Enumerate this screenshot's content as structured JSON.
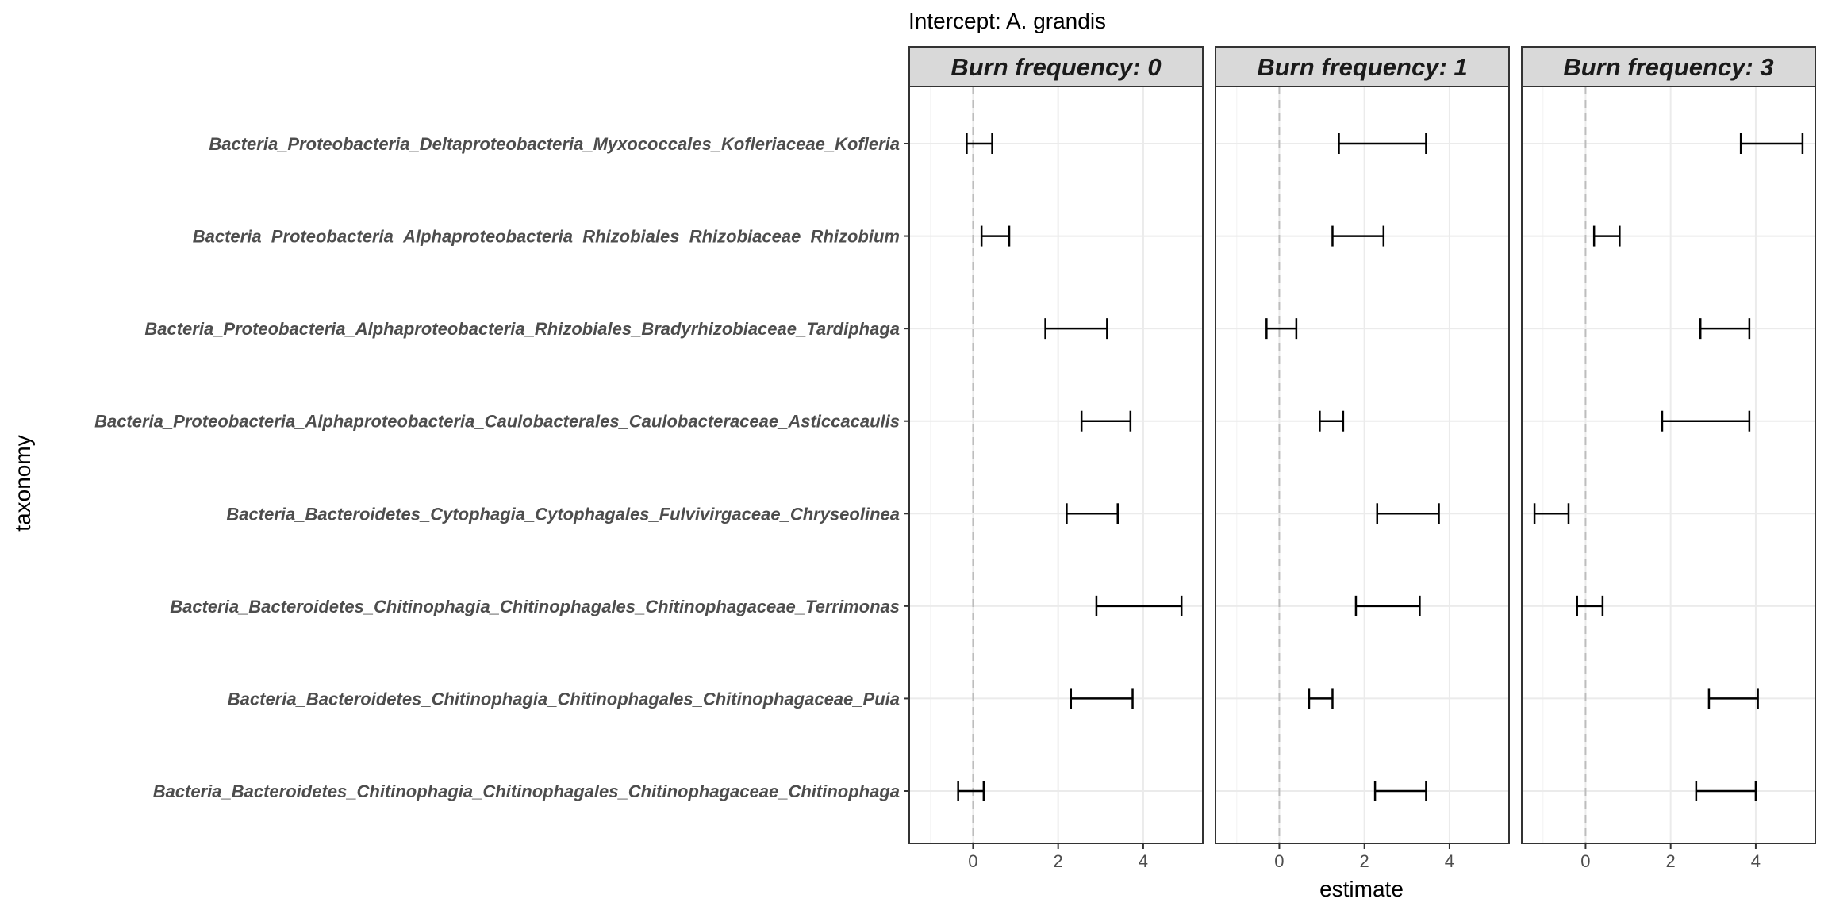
{
  "chart_data": {
    "type": "errorbar",
    "title": "Intercept: A. grandis",
    "xlabel": "estimate",
    "ylabel": "taxonomy",
    "xlim": [
      -1.5,
      5.4
    ],
    "xticks": [
      0,
      2,
      4
    ],
    "grid": true,
    "zero_reference_line": "dashed",
    "categories": [
      "Bacteria_Proteobacteria_Deltaproteobacteria_Myxococcales_Kofleriaceae_Kofleria",
      "Bacteria_Proteobacteria_Alphaproteobacteria_Rhizobiales_Rhizobiaceae_Rhizobium",
      "Bacteria_Proteobacteria_Alphaproteobacteria_Rhizobiales_Bradyrhizobiaceae_Tardiphaga",
      "Bacteria_Proteobacteria_Alphaproteobacteria_Caulobacterales_Caulobacteraceae_Asticcacaulis",
      "Bacteria_Bacteroidetes_Cytophagia_Cytophagales_Fulvivirgaceae_Chryseolinea",
      "Bacteria_Bacteroidetes_Chitinophagia_Chitinophagales_Chitinophagaceae_Terrimonas",
      "Bacteria_Bacteroidetes_Chitinophagia_Chitinophagales_Chitinophagaceae_Puia",
      "Bacteria_Bacteroidetes_Chitinophagia_Chitinophagales_Chitinophagaceae_Chitinophaga"
    ],
    "facets": [
      {
        "label": "Burn frequency: 0",
        "intervals": [
          [
            -0.15,
            0.45
          ],
          [
            0.2,
            0.85
          ],
          [
            1.7,
            3.15
          ],
          [
            2.55,
            3.7
          ],
          [
            2.2,
            3.4
          ],
          [
            2.9,
            4.9
          ],
          [
            2.3,
            3.75
          ],
          [
            -0.35,
            0.25
          ]
        ]
      },
      {
        "label": "Burn frequency: 1",
        "intervals": [
          [
            1.4,
            3.45
          ],
          [
            1.25,
            2.45
          ],
          [
            -0.3,
            0.4
          ],
          [
            0.95,
            1.5
          ],
          [
            2.3,
            3.75
          ],
          [
            1.8,
            3.3
          ],
          [
            0.7,
            1.25
          ],
          [
            2.25,
            3.45
          ]
        ]
      },
      {
        "label": "Burn frequency: 3",
        "intervals": [
          [
            3.65,
            5.1
          ],
          [
            0.2,
            0.8
          ],
          [
            2.7,
            3.85
          ],
          [
            1.8,
            3.85
          ],
          [
            -1.2,
            -0.4
          ],
          [
            -0.2,
            0.4
          ],
          [
            2.9,
            4.05
          ],
          [
            2.6,
            4.0
          ]
        ]
      }
    ]
  }
}
